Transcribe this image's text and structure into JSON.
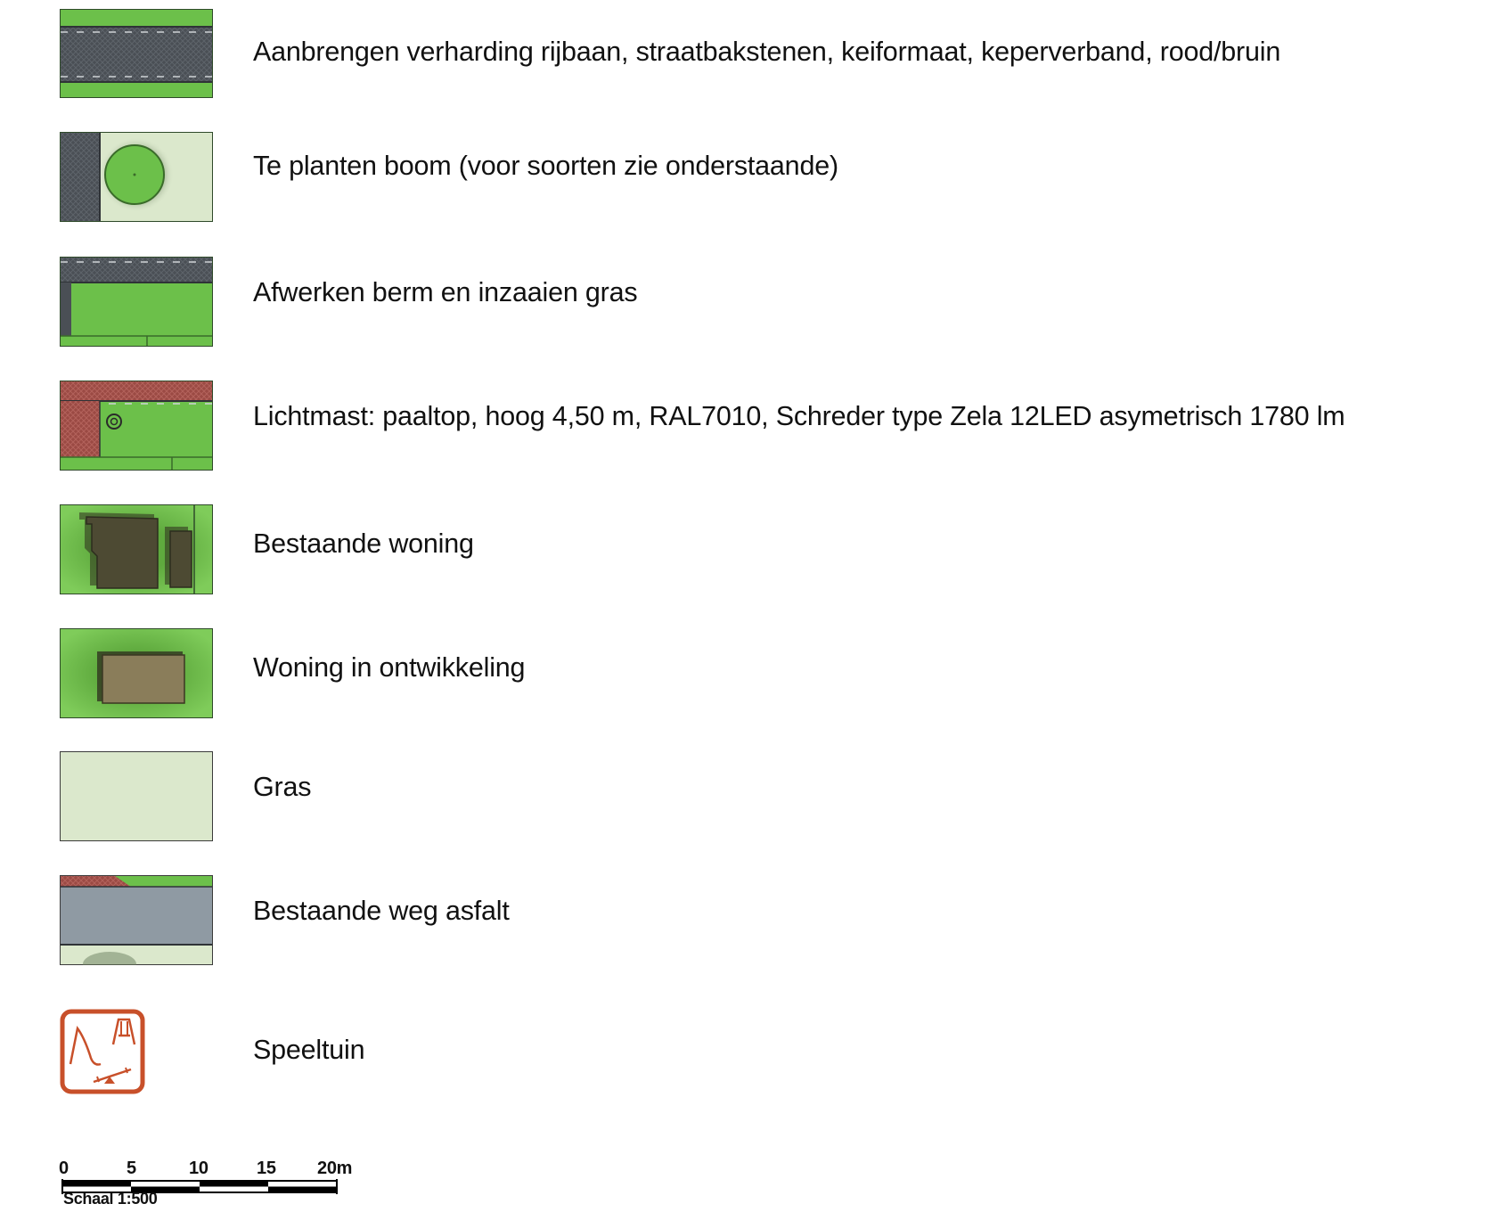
{
  "legend": {
    "items": [
      {
        "swatch": "road-paving-swatch",
        "label": "Aanbrengen verharding rijbaan, straatbakstenen, keiformaat, keperverband, rood/bruin"
      },
      {
        "swatch": "tree-swatch",
        "label": "Te planten boom (voor soorten zie onderstaande)"
      },
      {
        "swatch": "verge-grass-swatch",
        "label": "Afwerken berm en inzaaien gras"
      },
      {
        "swatch": "light-pole-swatch",
        "label": "Lichtmast: paaltop, hoog 4,50 m, RAL7010, Schreder type Zela 12LED asymetrisch 1780 lm"
      },
      {
        "swatch": "existing-house-swatch",
        "label": "Bestaande woning"
      },
      {
        "swatch": "house-in-development-swatch",
        "label": "Woning in ontwikkeling"
      },
      {
        "swatch": "grass-swatch",
        "label": "Gras"
      },
      {
        "swatch": "existing-asphalt-road-swatch",
        "label": "Bestaande weg asfalt"
      },
      {
        "swatch": "playground-icon",
        "label": "Speeltuin"
      }
    ]
  },
  "scale": {
    "ticks": [
      "0",
      "5",
      "10",
      "15",
      "20m"
    ],
    "caption": "Schaal 1:500"
  },
  "colors": {
    "grass_bright": "#6cc04a",
    "grass_light": "#dbe8cc",
    "asphalt_dark": "#4a4f55",
    "asphalt_grey": "#8f9aa3",
    "brick_red": "#9b4a44",
    "house_dark": "#4d4a33",
    "house_brown": "#8a7d5a",
    "playground_orange": "#c8502a"
  }
}
